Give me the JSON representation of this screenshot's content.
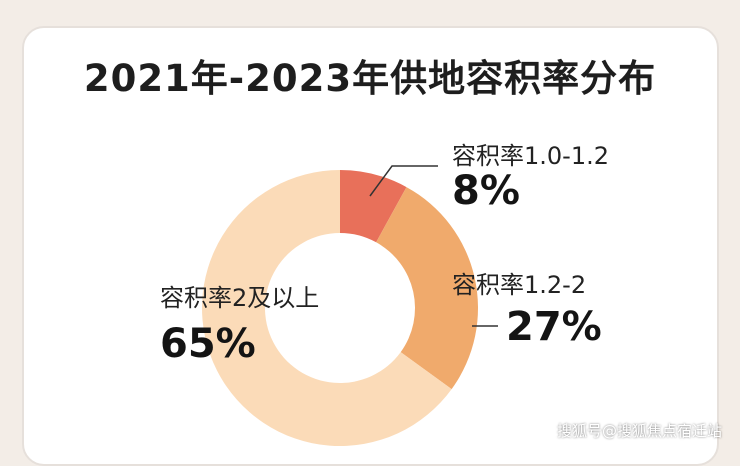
{
  "chart_data": {
    "type": "pie",
    "title": "2021年-2023年供地容积率分布",
    "donut": true,
    "slices": [
      {
        "label": "容积率1.0-1.2",
        "value": 8,
        "display": "8%",
        "color": "#e8705a"
      },
      {
        "label": "容积率1.2-2",
        "value": 27,
        "display": "27%",
        "color": "#f0aa6c"
      },
      {
        "label": "容积率2及以上",
        "value": 65,
        "display": "65%",
        "color": "#fbdbb8"
      }
    ]
  },
  "watermark": "搜狐号@搜狐焦点宿迁站"
}
